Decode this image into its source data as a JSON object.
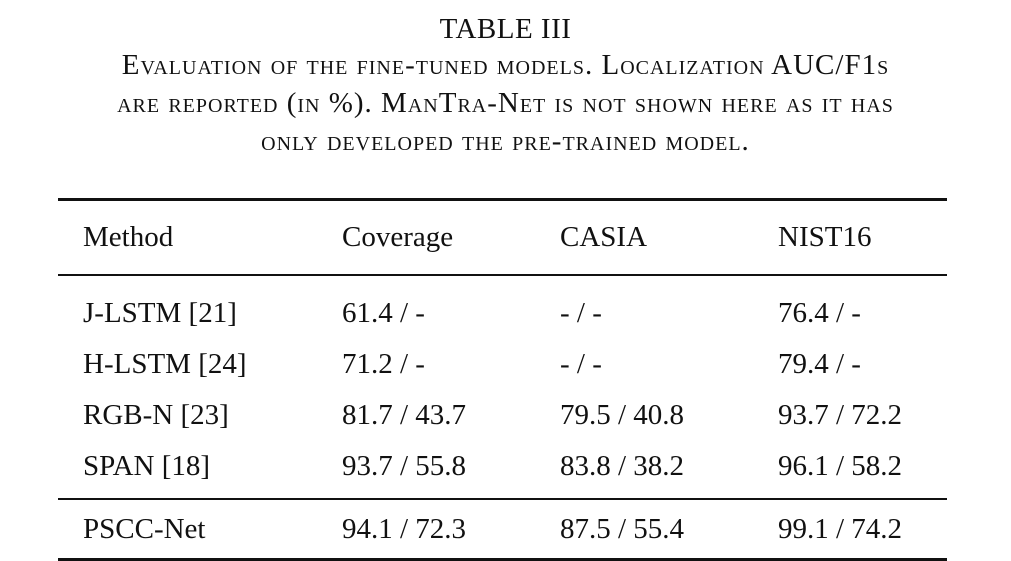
{
  "caption": {
    "label": "TABLE III",
    "lines": [
      "Evaluation of the fine-tuned models. Localization AUC/F1s",
      "are reported (in %). ManTra-Net is not shown here as it has",
      "only developed the pre-trained model."
    ]
  },
  "table": {
    "headers": [
      "Method",
      "Coverage",
      "CASIA",
      "NIST16"
    ],
    "rows": [
      {
        "method": "J-LSTM [21]",
        "coverage": "61.4 / -",
        "casia": "- / -",
        "nist16": "76.4 / -"
      },
      {
        "method": "H-LSTM [24]",
        "coverage": "71.2 / -",
        "casia": "- / -",
        "nist16": "79.4 / -"
      },
      {
        "method": "RGB-N [23]",
        "coverage": "81.7 / 43.7",
        "casia": "79.5 / 40.8",
        "nist16": "93.7 / 72.2"
      },
      {
        "method": "SPAN [18]",
        "coverage": "93.7 / 55.8",
        "casia": "83.8 / 38.2",
        "nist16": "96.1 / 58.2"
      }
    ],
    "best": {
      "method": "PSCC-Net",
      "coverage": "94.1 / 72.3",
      "casia": "87.5 / 55.4",
      "nist16": "99.1 / 74.2"
    }
  }
}
